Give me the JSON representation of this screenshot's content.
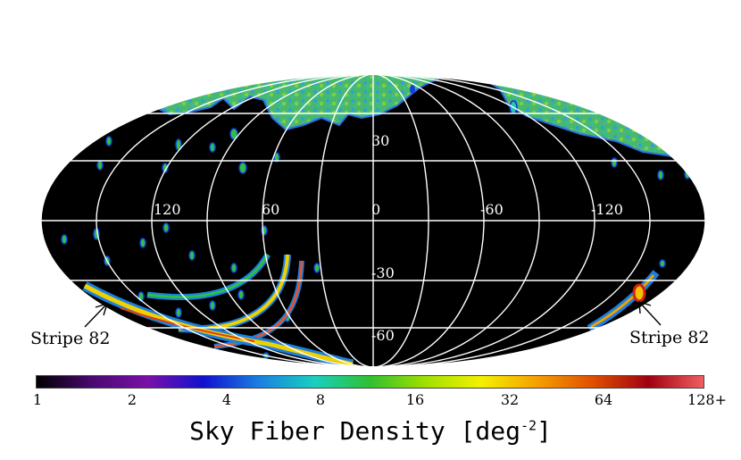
{
  "chart_data": {
    "type": "heatmap",
    "projection": "Mollweide (all-sky)",
    "title": "",
    "colorbar": {
      "label": "Sky Fiber Density [deg",
      "label_exponent": "-2",
      "label_close": "]",
      "scale": "log2",
      "ticks": [
        "1",
        "2",
        "4",
        "8",
        "16",
        "32",
        "64",
        "128+"
      ],
      "colors": [
        "#000000",
        "#4a0870",
        "#7a10a8",
        "#1010d0",
        "#1a7fe0",
        "#19d0c0",
        "#30c030",
        "#a0e000",
        "#f5f000",
        "#f5a000",
        "#e05000",
        "#a00010",
        "#f06060"
      ]
    },
    "longitude_labels": [
      "120",
      "60",
      "0",
      "-60",
      "-120"
    ],
    "latitude_labels": [
      "30",
      "-30",
      "-60"
    ],
    "annotations": [
      "Stripe 82",
      "Stripe 82"
    ],
    "regions": [
      {
        "name": "northern high-density cap",
        "typical_density": 10
      },
      {
        "name": "Stripe 82",
        "typical_density": 40
      }
    ],
    "grid": true
  }
}
